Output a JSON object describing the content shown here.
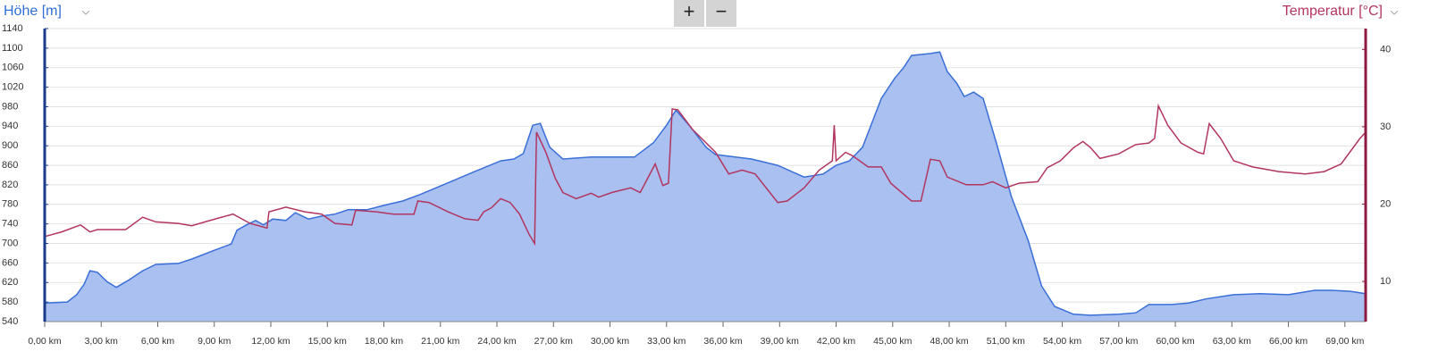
{
  "controls": [
    "+",
    "−"
  ],
  "chart_data": {
    "type": "area-line",
    "xlim": [
      0,
      70.1
    ],
    "xticks": [
      {
        "value": 0,
        "label": "0,00 km"
      },
      {
        "value": 3,
        "label": "3,00 km"
      },
      {
        "value": 6,
        "label": "6,00 km"
      },
      {
        "value": 9,
        "label": "9,00 km"
      },
      {
        "value": 12,
        "label": "12,00 km"
      },
      {
        "value": 15,
        "label": "15,00 km"
      },
      {
        "value": 18,
        "label": "18,00 km"
      },
      {
        "value": 21,
        "label": "21,00 km"
      },
      {
        "value": 24,
        "label": "24,00 km"
      },
      {
        "value": 27,
        "label": "27,00 km"
      },
      {
        "value": 30,
        "label": "30,00 km"
      },
      {
        "value": 33,
        "label": "33,00 km"
      },
      {
        "value": 36,
        "label": "36,00 km"
      },
      {
        "value": 39,
        "label": "39,00 km"
      },
      {
        "value": 42,
        "label": "42,00 km"
      },
      {
        "value": 45,
        "label": "45,00 km"
      },
      {
        "value": 48,
        "label": "48,00 km"
      },
      {
        "value": 51,
        "label": "51,00 km"
      },
      {
        "value": 54,
        "label": "54,00 km"
      },
      {
        "value": 57,
        "label": "57,00 km"
      },
      {
        "value": 60,
        "label": "60,00 km"
      },
      {
        "value": 63,
        "label": "63,00 km"
      },
      {
        "value": 66,
        "label": "66,00 km"
      },
      {
        "value": 69,
        "label": "69,00 km"
      }
    ],
    "ylim": [
      540,
      1140
    ],
    "yticks": [
      540,
      580,
      620,
      660,
      700,
      740,
      780,
      820,
      860,
      900,
      940,
      980,
      1020,
      1060,
      1100,
      1140
    ],
    "y2lim": [
      4.8,
      42.7
    ],
    "y2ticks": [
      10,
      20,
      30,
      40
    ],
    "grid": true,
    "series": [
      {
        "name": "Höhe [m]",
        "color": "#3a6fd8",
        "fill": "#a9c0f0",
        "kind": "area",
        "x": [
          0,
          1.2,
          1.7,
          2.1,
          2.4,
          2.8,
          3.3,
          3.8,
          4.5,
          5.2,
          5.9,
          7.1,
          7.8,
          9.0,
          9.9,
          10.2,
          10.7,
          11.2,
          11.6,
          12.1,
          12.8,
          13.3,
          14.0,
          14.7,
          15.4,
          16.1,
          17.1,
          18.0,
          19.0,
          19.9,
          21.4,
          22.8,
          24.2,
          24.9,
          25.4,
          25.9,
          26.3,
          26.8,
          27.5,
          29.0,
          31.3,
          32.3,
          33.0,
          33.5,
          34.2,
          35.1,
          35.6,
          37.5,
          38.9,
          40.3,
          41.3,
          42.0,
          42.7,
          43.4,
          44.4,
          45.1,
          45.6,
          46.0,
          47.0,
          47.5,
          47.9,
          48.4,
          48.8,
          49.3,
          49.8,
          50.5,
          51.3,
          52.2,
          52.9,
          53.6,
          54.6,
          55.5,
          57.0,
          57.9,
          58.6,
          59.8,
          60.7,
          61.7,
          63.1,
          64.5,
          66.0,
          67.4,
          68.3,
          69.3,
          70.1
        ],
        "values": [
          578,
          580,
          595,
          617,
          644,
          641,
          622,
          610,
          626,
          644,
          657,
          659,
          668,
          686,
          699,
          727,
          738,
          747,
          738,
          750,
          747,
          763,
          750,
          756,
          760,
          769,
          769,
          778,
          787,
          800,
          824,
          847,
          869,
          873,
          884,
          942,
          946,
          897,
          873,
          877,
          877,
          906,
          942,
          973,
          942,
          897,
          882,
          873,
          860,
          836,
          842,
          860,
          869,
          897,
          997,
          1038,
          1061,
          1085,
          1089,
          1092,
          1052,
          1028,
          1001,
          1010,
          997,
          906,
          796,
          705,
          613,
          571,
          555,
          553,
          555,
          558,
          575,
          575,
          578,
          587,
          595,
          597,
          595,
          604,
          604,
          602,
          597
        ]
      },
      {
        "name": "Temperatur [°C]",
        "color": "#b2355f",
        "kind": "line",
        "axis": "y2",
        "x": [
          0,
          0.9,
          1.9,
          2.4,
          2.8,
          4.3,
          5.2,
          5.9,
          7.1,
          7.8,
          8.8,
          10.0,
          10.9,
          11.8,
          11.9,
          12.8,
          13.8,
          14.7,
          15.4,
          16.3,
          16.5,
          17.6,
          18.5,
          19.6,
          19.8,
          20.4,
          21.4,
          22.3,
          23.0,
          23.3,
          23.7,
          24.2,
          24.7,
          25.2,
          25.7,
          26.0,
          26.05,
          26.1,
          26.6,
          27.1,
          27.5,
          28.2,
          29.0,
          29.4,
          30.1,
          31.1,
          31.6,
          32.4,
          32.8,
          33.1,
          33.3,
          33.6,
          34.4,
          35.6,
          36.3,
          37.0,
          37.7,
          38.9,
          39.4,
          40.3,
          41.1,
          41.8,
          41.9,
          42.0,
          42.5,
          42.9,
          43.7,
          44.4,
          44.9,
          46.0,
          46.5,
          47.0,
          47.5,
          47.9,
          48.9,
          49.8,
          50.3,
          51.0,
          51.7,
          52.7,
          53.2,
          53.9,
          54.6,
          55.1,
          55.5,
          56.0,
          57.0,
          57.9,
          58.6,
          58.9,
          59.1,
          59.6,
          60.3,
          61.2,
          61.5,
          61.8,
          62.4,
          63.1,
          64.1,
          65.5,
          66.9,
          67.9,
          68.8,
          69.8,
          70.1
        ],
        "values": [
          15.8,
          16.4,
          17.3,
          16.4,
          16.7,
          16.7,
          18.3,
          17.7,
          17.5,
          17.2,
          17.9,
          18.7,
          17.5,
          16.9,
          19.0,
          19.6,
          19.0,
          18.7,
          17.5,
          17.3,
          19.2,
          19.0,
          18.7,
          18.7,
          20.4,
          20.2,
          19.0,
          18.1,
          17.9,
          19.0,
          19.5,
          20.7,
          20.2,
          18.7,
          16.1,
          14.9,
          22.1,
          29.3,
          26.7,
          23.3,
          21.5,
          20.7,
          21.4,
          20.9,
          21.5,
          22.1,
          21.5,
          25.2,
          22.4,
          22.7,
          32.3,
          32.2,
          29.6,
          26.7,
          23.9,
          24.4,
          23.9,
          20.2,
          20.4,
          22.1,
          24.4,
          25.6,
          30.2,
          25.6,
          26.7,
          26.2,
          24.8,
          24.8,
          22.7,
          20.4,
          20.4,
          25.8,
          25.6,
          23.5,
          22.5,
          22.5,
          22.9,
          22.1,
          22.7,
          22.9,
          24.7,
          25.6,
          27.3,
          28.1,
          27.3,
          25.9,
          26.5,
          27.7,
          27.9,
          28.5,
          32.7,
          30.2,
          27.9,
          26.7,
          26.5,
          30.4,
          28.5,
          25.6,
          24.8,
          24.2,
          23.9,
          24.2,
          25.2,
          28.5,
          29.3
        ]
      }
    ]
  }
}
